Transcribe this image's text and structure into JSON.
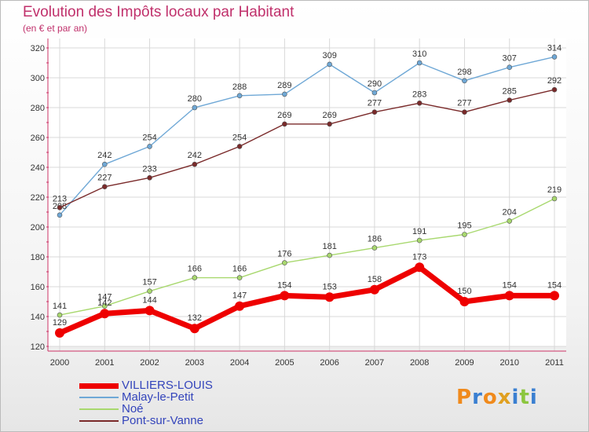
{
  "chart_data": {
    "type": "line",
    "title": "Evolution des Impôts locaux par Habitant",
    "subtitle": "(en € et par an)",
    "xlabel": "",
    "ylabel": "",
    "categories": [
      "2000",
      "2001",
      "2002",
      "2003",
      "2004",
      "2005",
      "2006",
      "2007",
      "2008",
      "2009",
      "2010",
      "2011"
    ],
    "ylim": [
      120,
      320
    ],
    "yticks": [
      120,
      140,
      160,
      180,
      200,
      220,
      240,
      260,
      280,
      300,
      320
    ],
    "grid": true,
    "legend_position": "bottom-left",
    "series": [
      {
        "name": "VILLIERS-LOUIS",
        "color": "#ee0000",
        "values": [
          129,
          142,
          144,
          132,
          147,
          154,
          153,
          158,
          173,
          150,
          154,
          154
        ]
      },
      {
        "name": "Malay-le-Petit",
        "color": "#6fa8d6",
        "values": [
          208,
          242,
          254,
          280,
          288,
          289,
          309,
          290,
          310,
          298,
          307,
          314
        ]
      },
      {
        "name": "Noé",
        "color": "#a8d86e",
        "values": [
          141,
          147,
          157,
          166,
          166,
          176,
          181,
          186,
          191,
          195,
          204,
          219
        ]
      },
      {
        "name": "Pont-sur-Vanne",
        "color": "#7a2a2a",
        "values": [
          213,
          227,
          233,
          242,
          254,
          269,
          269,
          277,
          283,
          277,
          285,
          292
        ]
      }
    ]
  },
  "logo": {
    "letters": [
      "P",
      "r",
      "o",
      "x",
      "i",
      "t",
      "i"
    ],
    "colors": [
      "#f08a1c",
      "#3a7fd1",
      "#f08a1c",
      "#e0a020",
      "#3a7fd1",
      "#8cc63f",
      "#3a7fd1"
    ]
  }
}
